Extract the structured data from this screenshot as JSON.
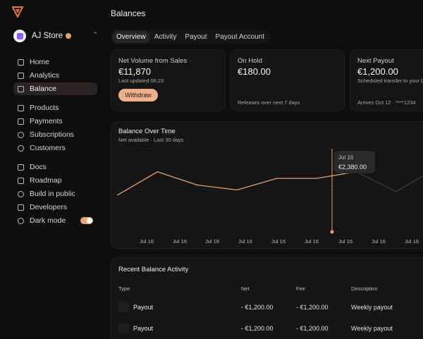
{
  "app": {
    "page_title": "Balances"
  },
  "store": {
    "name": "AJ Store"
  },
  "sidebar": {
    "items": [
      {
        "label": "Home",
        "icon": "home-icon",
        "active": false
      },
      {
        "label": "Analytics",
        "icon": "analytics-icon",
        "active": false
      },
      {
        "label": "Balance",
        "icon": "wallet-icon",
        "active": true
      },
      {
        "label": "Products",
        "icon": "box-icon",
        "active": false
      },
      {
        "label": "Payments",
        "icon": "card-icon",
        "active": false
      },
      {
        "label": "Subscriptions",
        "icon": "refresh-icon",
        "active": false
      },
      {
        "label": "Customers",
        "icon": "users-icon",
        "active": false
      },
      {
        "label": "Docs",
        "icon": "book-icon",
        "active": false
      },
      {
        "label": "Roadmap",
        "icon": "roadmap-icon",
        "active": false
      },
      {
        "label": "Build in public",
        "icon": "globe-icon",
        "active": false
      },
      {
        "label": "Developers",
        "icon": "code-icon",
        "active": false
      },
      {
        "label": "Dark mode",
        "icon": "moon-icon",
        "active": false
      }
    ]
  },
  "tabs": [
    {
      "label": "Overview",
      "active": true
    },
    {
      "label": "Activity",
      "active": false
    },
    {
      "label": "Payout",
      "active": false
    },
    {
      "label": "Payout Account",
      "active": false
    }
  ],
  "cards": {
    "net_volume": {
      "title": "Net Volume from Sales",
      "value": "€11,870",
      "sub": "Last updated 06:23",
      "button": "Withdraw"
    },
    "on_hold": {
      "title": "On Hold",
      "value": "€180.00",
      "foot": "Releases over next 7 days"
    },
    "next_payout": {
      "title": "Next Payout",
      "value": "€1,200.00",
      "sub": "Scheduled transfer to your b",
      "foot": "Arrives Oct 12 · ****1234"
    }
  },
  "chart": {
    "title": "Balance Over Time",
    "subtitle": "Net available · Last 30 days",
    "tooltip_date": "Jul 16",
    "tooltip_value": "€2,380.00"
  },
  "chart_data": {
    "type": "line",
    "x": [
      "Jul 16",
      "Jul 16",
      "Jul 16",
      "Jul 16",
      "Jul 16",
      "Jul 16",
      "Jul 16",
      "Jul 16",
      "Jul 16"
    ],
    "series": [
      {
        "values": [
          2310,
          2380,
          2340,
          2325,
          2360,
          2360,
          2380,
          2320,
          2390
        ]
      }
    ],
    "highlight_index": 6,
    "ylim": [
      2200,
      2450
    ],
    "grid": true,
    "line_color": "#e8a070"
  },
  "activity": {
    "title": "Recent Balance Activity",
    "headers": [
      "Type",
      "Net",
      "Fee",
      "Description"
    ],
    "rows": [
      {
        "type": "Payout",
        "net": "- €1,200.00",
        "fee": "- €1,200.00",
        "description": "Weekly payout"
      },
      {
        "type": "Payout",
        "net": "- €1,200.00",
        "fee": "- €1,200.00",
        "description": "Weekly payout"
      }
    ]
  },
  "colors": {
    "accent": "#f0b08a",
    "background": "#0e0e0e",
    "card": "#151515"
  }
}
